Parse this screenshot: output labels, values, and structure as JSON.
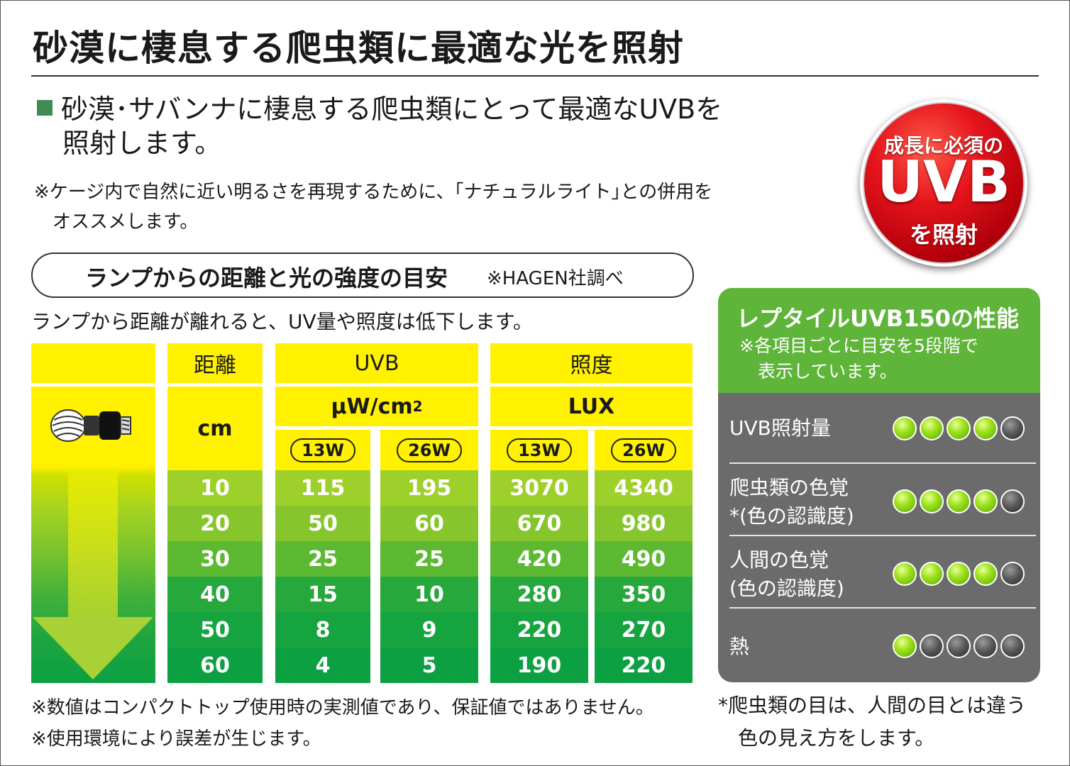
{
  "title": "砂漠に棲息する爬虫類に最適な光を照射",
  "lead": {
    "line1": "砂漠･サバンナに棲息する爬虫類にとって最適なUVBを",
    "line2": "照射します。"
  },
  "note": {
    "line1": "※ケージ内で自然に近い明るさを再現するために、｢ナチュラルライト｣との併用を",
    "line2": "オススメします。"
  },
  "badge": {
    "line1": "成長に必須の",
    "line2": "UVB",
    "line3": "を照射"
  },
  "section": {
    "title": "ランプからの距離と光の強度の目安",
    "source": "※HAGEN社調べ",
    "intro": "ランプから距離が離れると、UV量や照度は低下します。"
  },
  "table": {
    "headers": {
      "distance": "距離",
      "uvb": "UVB",
      "lux": "照度"
    },
    "units": {
      "distance": "cm",
      "uvb": "μW/cm",
      "uvb_sup": "2",
      "lux": "LUX"
    },
    "watts": [
      "13W",
      "26W",
      "13W",
      "26W"
    ],
    "rows": [
      [
        "10",
        "115",
        "195",
        "3070",
        "4340"
      ],
      [
        "20",
        "50",
        "60",
        "670",
        "980"
      ],
      [
        "30",
        "25",
        "25",
        "420",
        "490"
      ],
      [
        "40",
        "15",
        "10",
        "280",
        "350"
      ],
      [
        "50",
        "8",
        "9",
        "220",
        "270"
      ],
      [
        "60",
        "4",
        "5",
        "190",
        "220"
      ]
    ],
    "row_colors": [
      "#9dd02a",
      "#86c62c",
      "#5db932",
      "#26a83c",
      "#16a440",
      "#0ca043"
    ],
    "lamp_icon": "spiral-bulb-icon"
  },
  "performance": {
    "title": "レプタイルUVB150の性能",
    "note_line1": "※各項目ごとに目安を5段階で",
    "note_line2": "表示しています。",
    "items": [
      {
        "label1": "UVB照射量",
        "label2": "",
        "rating": 4,
        "max": 5
      },
      {
        "label1": "爬虫類の色覚",
        "label2": "*(色の認識度)",
        "rating": 4,
        "max": 5
      },
      {
        "label1": "人間の色覚",
        "label2": "(色の認識度)",
        "rating": 4,
        "max": 5
      },
      {
        "label1": "熱",
        "label2": "",
        "rating": 1,
        "max": 5
      }
    ]
  },
  "footnotes": {
    "left1": "※数値はコンパクトトップ使用時の実測値であり、保証値ではありません。",
    "left2": "※使用環境により誤差が生じます。",
    "right1": "*爬虫類の目は、人間の目とは違う",
    "right2": "色の見え方をします。"
  }
}
